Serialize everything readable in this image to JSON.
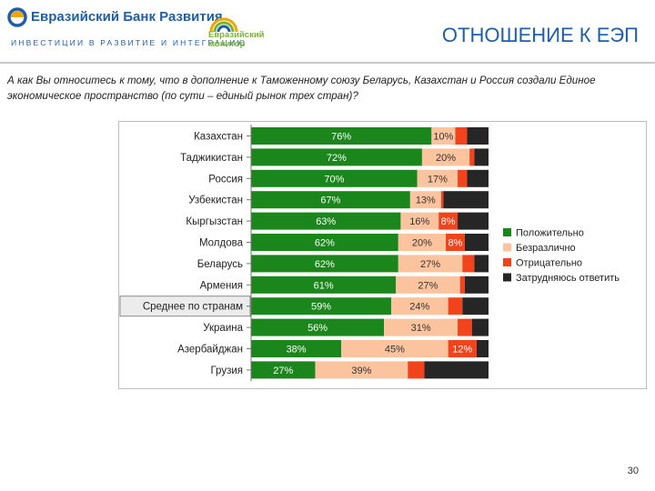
{
  "header": {
    "bank_name": "Евразийский Банк Развития",
    "bank_tagline": "ИНВЕСТИЦИИ В РАЗВИТИЕ И ИНТЕГРАЦИЮ",
    "monitor_name_line1": "Евразийский",
    "monitor_name_line2": "монитор",
    "title": "ОТНОШЕНИЕ К ЕЭП"
  },
  "question": "А как Вы относитесь к тому, что в дополнение к Таможенному союзу Беларусь, Казахстан и Россия создали Единое экономическое пространство (по сути – единый рынок трех стран)?",
  "page_number": "30",
  "colors": {
    "positive": "#1b861b",
    "indifferent": "#fbc49e",
    "negative": "#f2441c",
    "unsure": "#262626",
    "title": "#1f5fa8"
  },
  "chart_data": {
    "type": "bar",
    "orientation": "horizontal",
    "stacked": true,
    "percent_scale": true,
    "xlim": [
      0,
      100
    ],
    "legend_position": "right",
    "categories": [
      "Казахстан",
      "Таджикистан",
      "Россия",
      "Узбекистан",
      "Кыргызстан",
      "Молдова",
      "Беларусь",
      "Армения",
      "Среднее по странам",
      "Украина",
      "Азербайджан",
      "Грузия"
    ],
    "highlighted_category": "Среднее по странам",
    "series": [
      {
        "name": "Положительно",
        "values": [
          76,
          72,
          70,
          67,
          63,
          62,
          62,
          61,
          59,
          56,
          38,
          27
        ],
        "labels": [
          "76%",
          "72%",
          "70%",
          "67%",
          "63%",
          "62%",
          "62%",
          "61%",
          "59%",
          "56%",
          "38%",
          "27%"
        ]
      },
      {
        "name": "Безразлично",
        "values": [
          10,
          20,
          17,
          13,
          16,
          20,
          27,
          27,
          24,
          31,
          45,
          39
        ],
        "labels": [
          "10%",
          "20%",
          "17%",
          "13%",
          "16%",
          "20%",
          "27%",
          "27%",
          "24%",
          "31%",
          "45%",
          "39%"
        ]
      },
      {
        "name": "Отрицательно",
        "values": [
          5,
          2,
          4,
          1,
          8,
          8,
          5,
          2,
          6,
          6,
          12,
          7
        ],
        "labels": [
          "",
          "",
          "",
          "",
          "8%",
          "8%",
          "",
          "",
          "",
          "",
          "12%",
          ""
        ]
      },
      {
        "name": "Затрудняюсь ответить",
        "values": [
          9,
          6,
          9,
          19,
          13,
          10,
          6,
          10,
          11,
          7,
          5,
          27
        ],
        "labels": [
          "",
          "",
          "",
          "",
          "",
          "",
          "",
          "",
          "",
          "",
          "",
          ""
        ]
      }
    ]
  }
}
